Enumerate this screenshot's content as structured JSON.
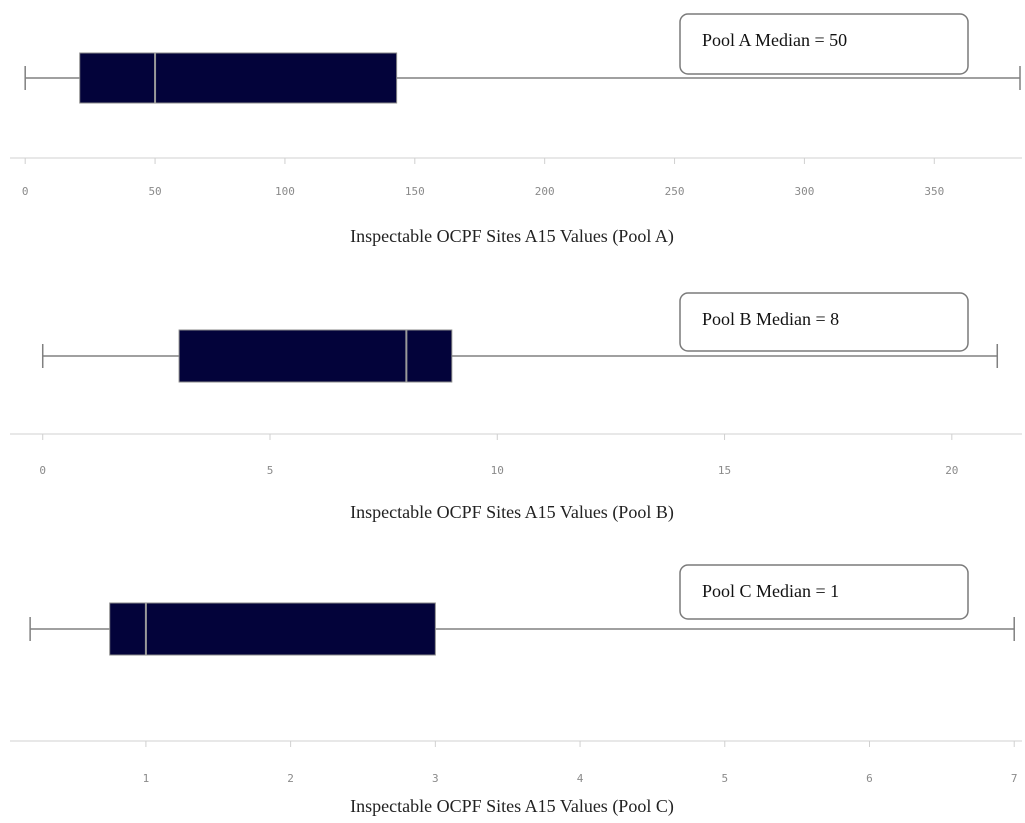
{
  "chart_data": [
    {
      "type": "box",
      "title": "",
      "xlabel": "Inspectable OCPF Sites A15 Values (Pool A)",
      "legend_text": "Pool A Median = 50",
      "legend_position": "top-right",
      "ticks": [
        0,
        50,
        100,
        150,
        200,
        250,
        300,
        350
      ],
      "xlim": [
        -2,
        383
      ],
      "box": {
        "min": 0,
        "q1": 21,
        "median": 50,
        "q3": 143,
        "max": 383
      },
      "colors": {
        "box": "#03033a",
        "median": "#9a9a9a",
        "whisker": "#808080"
      },
      "grid": false
    },
    {
      "type": "box",
      "title": "",
      "xlabel": "Inspectable OCPF Sites A15 Values (Pool B)",
      "legend_text": "Pool B Median = 8",
      "legend_position": "top-right",
      "ticks": [
        0,
        5,
        10,
        15,
        20
      ],
      "xlim": [
        -0.5,
        21.5
      ],
      "box": {
        "min": 0,
        "q1": 3,
        "median": 8,
        "q3": 9,
        "max": 21
      },
      "colors": {
        "box": "#03033a",
        "median": "#9a9a9a",
        "whisker": "#808080"
      },
      "grid": false
    },
    {
      "type": "box",
      "title": "",
      "xlabel": "Inspectable OCPF Sites A15 Values (Pool C)",
      "legend_text": "Pool C Median = 1",
      "legend_position": "top-right",
      "ticks": [
        1,
        2,
        3,
        4,
        5,
        6,
        7
      ],
      "xlim": [
        0.13,
        7.04
      ],
      "box": {
        "min": 0.2,
        "q1": 0.75,
        "median": 1,
        "q3": 3,
        "max": 7
      },
      "colors": {
        "box": "#03033a",
        "median": "#9a9a9a",
        "whisker": "#808080"
      },
      "grid": false
    }
  ]
}
